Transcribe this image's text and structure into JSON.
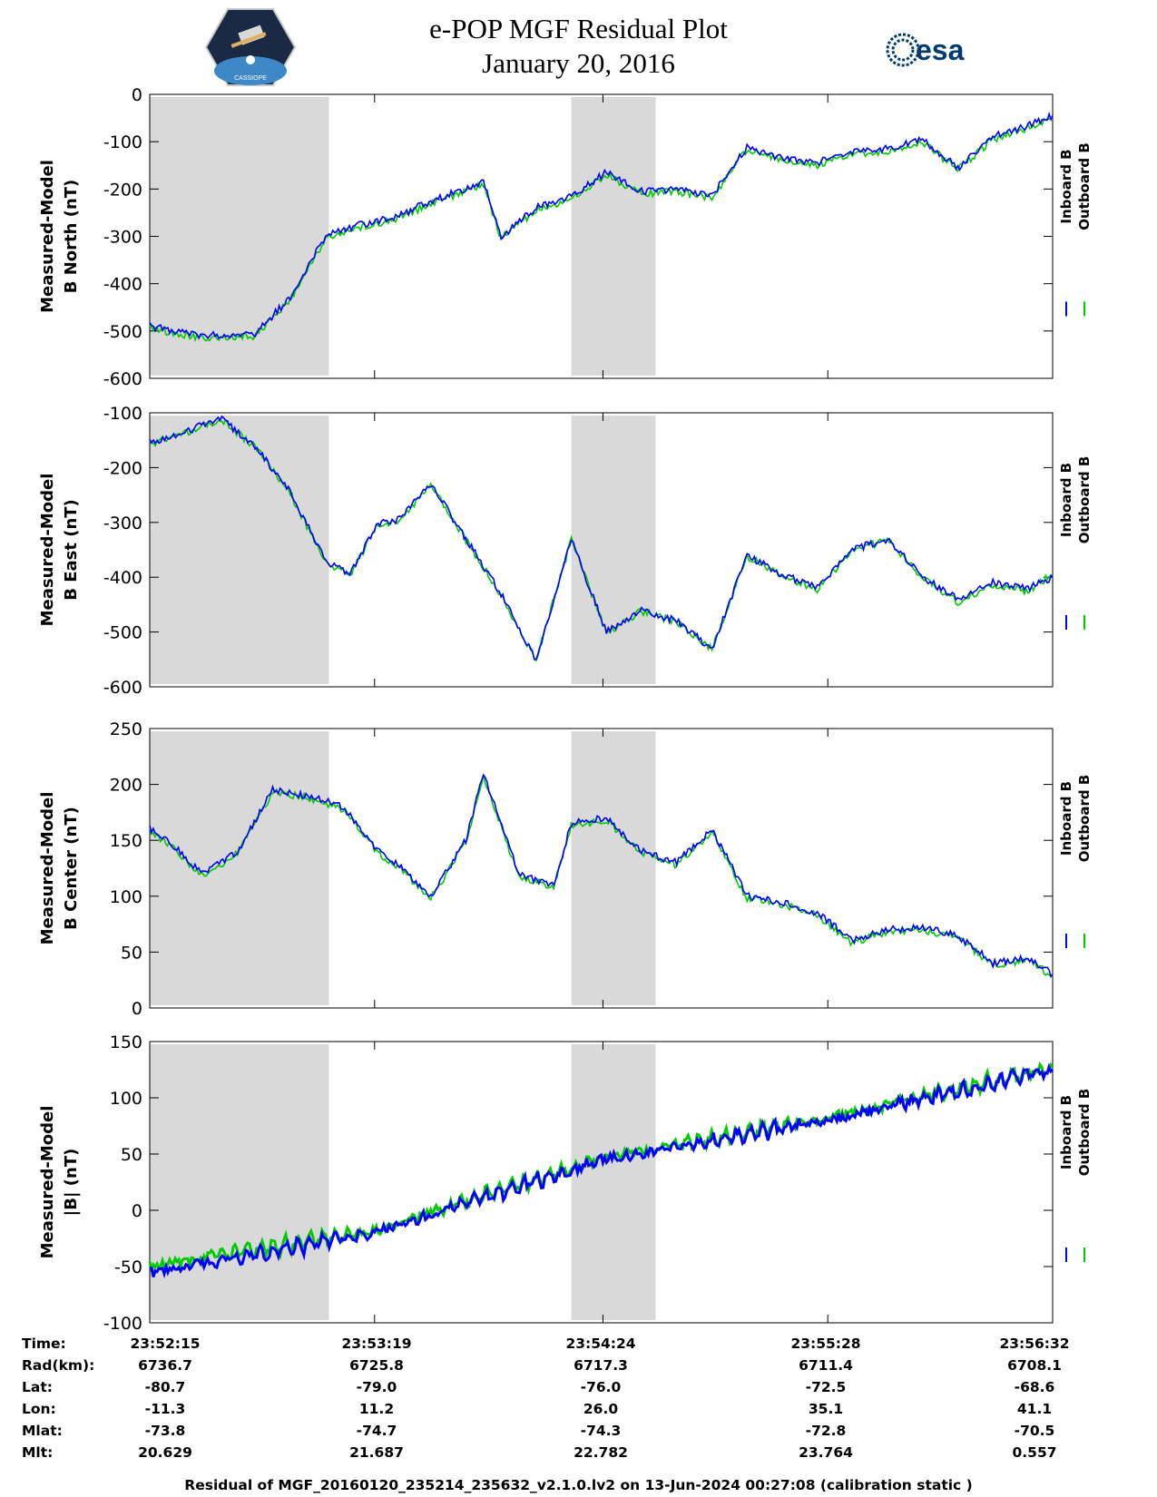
{
  "header": {
    "title_line1": "e-POP MGF Residual Plot",
    "title_line2": "January 20, 2016",
    "left_logo_text": "CASSIOPE",
    "right_logo_text": "esa"
  },
  "colors": {
    "inboard": "#0000ff",
    "outboard": "#00cc00",
    "shade": "#d9d9d9"
  },
  "chart_data": [
    {
      "type": "line",
      "ylabel": [
        "Measured-Model",
        "B North (nT)"
      ],
      "ylim": [
        -600,
        0
      ],
      "yticks": [
        -600,
        -500,
        -400,
        -300,
        -200,
        -100,
        0
      ],
      "legend_placement": "right",
      "x": [
        "23:52:15",
        "23:52:30",
        "23:52:45",
        "23:52:55",
        "23:53:05",
        "23:53:15",
        "23:53:25",
        "23:53:35",
        "23:53:45",
        "23:53:50",
        "23:53:55",
        "23:54:05",
        "23:54:15",
        "23:54:25",
        "23:54:35",
        "23:54:45",
        "23:54:55",
        "23:55:05",
        "23:55:15",
        "23:55:25",
        "23:55:35",
        "23:55:45",
        "23:55:55",
        "23:56:05",
        "23:56:15",
        "23:56:25",
        "23:56:32"
      ],
      "series": [
        {
          "name": "Inboard B",
          "values": [
            -490,
            -510,
            -505,
            -430,
            -300,
            -275,
            -260,
            -225,
            -200,
            -185,
            -300,
            -240,
            -215,
            -165,
            -205,
            -200,
            -215,
            -110,
            -135,
            -145,
            -120,
            -115,
            -95,
            -155,
            -90,
            -65,
            -45
          ]
        },
        {
          "name": "Outboard B",
          "values": [
            -495,
            -515,
            -510,
            -435,
            -305,
            -280,
            -265,
            -230,
            -205,
            -190,
            -305,
            -245,
            -220,
            -170,
            -210,
            -205,
            -220,
            -115,
            -140,
            -150,
            -125,
            -120,
            -100,
            -160,
            -95,
            -70,
            -50
          ]
        }
      ]
    },
    {
      "type": "line",
      "ylabel": [
        "Measured-Model",
        "B East (nT)"
      ],
      "ylim": [
        -600,
        -100
      ],
      "yticks": [
        -600,
        -500,
        -400,
        -300,
        -200,
        -100
      ],
      "legend_placement": "right",
      "x": [
        "23:52:15",
        "23:52:25",
        "23:52:35",
        "23:52:45",
        "23:52:55",
        "23:53:05",
        "23:53:12",
        "23:53:20",
        "23:53:25",
        "23:53:35",
        "23:53:45",
        "23:53:55",
        "23:54:05",
        "23:54:15",
        "23:54:25",
        "23:54:35",
        "23:54:45",
        "23:54:55",
        "23:55:05",
        "23:55:15",
        "23:55:25",
        "23:55:35",
        "23:55:45",
        "23:55:55",
        "23:56:05",
        "23:56:15",
        "23:56:25",
        "23:56:32"
      ],
      "series": [
        {
          "name": "Inboard B",
          "values": [
            -155,
            -135,
            -110,
            -160,
            -245,
            -370,
            -395,
            -300,
            -300,
            -230,
            -330,
            -430,
            -550,
            -330,
            -500,
            -460,
            -480,
            -530,
            -360,
            -395,
            -420,
            -350,
            -330,
            -400,
            -440,
            -410,
            -420,
            -400
          ]
        },
        {
          "name": "Outboard B",
          "values": [
            -157,
            -137,
            -112,
            -162,
            -247,
            -372,
            -397,
            -302,
            -302,
            -232,
            -332,
            -432,
            -552,
            -332,
            -502,
            -462,
            -482,
            -532,
            -362,
            -397,
            -422,
            -352,
            -332,
            -402,
            -445,
            -415,
            -425,
            -395
          ]
        }
      ]
    },
    {
      "type": "line",
      "ylabel": [
        "Measured-Model",
        "B Center (nT)"
      ],
      "ylim": [
        0,
        250
      ],
      "yticks": [
        0,
        50,
        100,
        150,
        200,
        250
      ],
      "legend_placement": "right",
      "x": [
        "23:52:15",
        "23:52:20",
        "23:52:30",
        "23:52:40",
        "23:52:50",
        "23:53:00",
        "23:53:10",
        "23:53:20",
        "23:53:25",
        "23:53:35",
        "23:53:45",
        "23:53:50",
        "23:54:00",
        "23:54:10",
        "23:54:15",
        "23:54:25",
        "23:54:35",
        "23:54:45",
        "23:54:55",
        "23:55:05",
        "23:55:15",
        "23:55:25",
        "23:55:35",
        "23:55:45",
        "23:55:55",
        "23:56:05",
        "23:56:15",
        "23:56:25",
        "23:56:32"
      ],
      "series": [
        {
          "name": "Inboard B",
          "values": [
            160,
            150,
            120,
            140,
            195,
            190,
            180,
            140,
            130,
            100,
            150,
            210,
            120,
            110,
            165,
            170,
            140,
            130,
            160,
            100,
            95,
            85,
            60,
            70,
            72,
            65,
            40,
            45,
            30
          ]
        },
        {
          "name": "Outboard B",
          "values": [
            158,
            148,
            118,
            138,
            193,
            188,
            178,
            138,
            128,
            98,
            148,
            208,
            118,
            108,
            163,
            168,
            138,
            128,
            158,
            98,
            93,
            83,
            58,
            68,
            70,
            63,
            38,
            43,
            28
          ]
        }
      ]
    },
    {
      "type": "line",
      "ylabel": [
        "Measured-Model",
        "|B| (nT)"
      ],
      "ylim": [
        -100,
        150
      ],
      "yticks": [
        -100,
        -50,
        0,
        50,
        100,
        150
      ],
      "legend_placement": "right",
      "x": [
        "23:52:15",
        "23:53:19",
        "23:54:24",
        "23:55:28",
        "23:56:32"
      ],
      "series": [
        {
          "name": "Inboard B",
          "values": [
            -55,
            -20,
            45,
            80,
            125
          ]
        },
        {
          "name": "Outboard B",
          "values": [
            -50,
            -18,
            47,
            82,
            127
          ]
        }
      ]
    }
  ],
  "shaded_intervals": [
    [
      "23:52:15",
      "23:53:06"
    ],
    [
      "23:54:15",
      "23:54:39"
    ]
  ],
  "x_axis": {
    "start": "23:52:15",
    "end": "23:56:32",
    "ticks": [
      "23:52:15",
      "23:53:19",
      "23:54:24",
      "23:55:28",
      "23:56:32"
    ]
  },
  "footer_table": {
    "labels": [
      "Time:",
      "Rad(km):",
      "Lat:",
      "Lon:",
      "Mlat:",
      "Mlt:"
    ],
    "columns": [
      [
        "23:52:15",
        "6736.7",
        "-80.7",
        "-11.3",
        "-73.8",
        "20.629"
      ],
      [
        "23:53:19",
        "6725.8",
        "-79.0",
        "11.2",
        "-74.7",
        "21.687"
      ],
      [
        "23:54:24",
        "6717.3",
        "-76.0",
        "26.0",
        "-74.3",
        "22.782"
      ],
      [
        "23:55:28",
        "6711.4",
        "-72.5",
        "35.1",
        "-72.8",
        "23.764"
      ],
      [
        "23:56:32",
        "6708.1",
        "-68.6",
        "41.1",
        "-70.5",
        "0.557"
      ]
    ]
  },
  "footer_note": "Residual of MGF_20160120_235214_235632_v2.1.0.lv2 on 13-Jun-2024 00:27:08 (calibration static )"
}
